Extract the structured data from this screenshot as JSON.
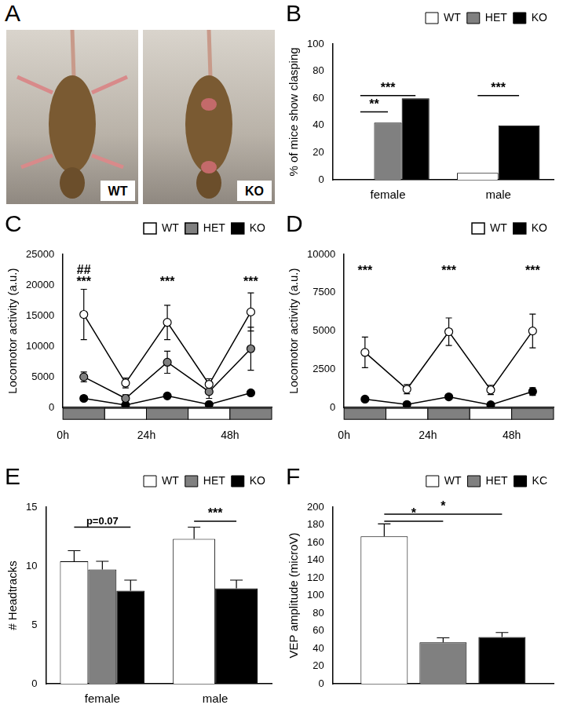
{
  "panel_a": {
    "title": "A",
    "images": [
      {
        "label": "WT"
      },
      {
        "label": "KO"
      }
    ]
  },
  "chart_data": [
    {
      "type": "bar",
      "title": "B",
      "y_label": "% of mice show clasping",
      "categories": [
        "female",
        "male"
      ],
      "series": [
        {
          "name": "WT",
          "color": "#ffffff",
          "values": [
            0,
            5
          ]
        },
        {
          "name": "HET",
          "color": "#808080",
          "values": [
            42,
            null
          ]
        },
        {
          "name": "KO",
          "color": "#000000",
          "values": [
            60,
            40
          ]
        }
      ],
      "ylim": [
        0,
        100
      ],
      "yticks": [
        0,
        20,
        40,
        60,
        80,
        100
      ],
      "grid": false,
      "legend": "top-right",
      "annotations": [
        {
          "text": "**",
          "category": "female",
          "from": "WT",
          "to": "HET",
          "y": 50
        },
        {
          "text": "***",
          "category": "female",
          "from": "WT",
          "to": "KO",
          "y": 62
        },
        {
          "text": "***",
          "category": "male",
          "from": "WT",
          "to": "KO",
          "y": 62
        }
      ]
    },
    {
      "type": "line",
      "title": "C",
      "y_label": "Locomotor activity (a.u.)",
      "x": [
        6,
        18,
        30,
        42,
        54
      ],
      "series": [
        {
          "name": "WT",
          "color": "#ffffff",
          "marker": "circle",
          "values": [
            15200,
            4000,
            13900,
            3800,
            15600
          ],
          "errors": [
            4100,
            800,
            2800,
            900,
            3100
          ]
        },
        {
          "name": "HET",
          "color": "#808080",
          "marker": "circle",
          "values": [
            5000,
            1500,
            7400,
            2600,
            9600
          ],
          "errors": [
            800,
            600,
            1800,
            1100,
            3500
          ]
        },
        {
          "name": "KO",
          "color": "#000000",
          "marker": "circle",
          "values": [
            1500,
            400,
            1900,
            500,
            2400
          ],
          "errors": [
            200,
            100,
            200,
            100,
            250
          ]
        }
      ],
      "xlim": [
        0,
        60
      ],
      "xticks": [
        {
          "value": 0,
          "label": "0h"
        },
        {
          "value": 24,
          "label": "24h"
        },
        {
          "value": 48,
          "label": "48h"
        }
      ],
      "ylim": [
        0,
        25000
      ],
      "yticks": [
        0,
        5000,
        10000,
        15000,
        20000,
        25000
      ],
      "grid": false,
      "legend": "top-right",
      "periods": [
        {
          "from": 0,
          "to": 12,
          "color": "#808080"
        },
        {
          "from": 12,
          "to": 24,
          "color": "#ffffff"
        },
        {
          "from": 24,
          "to": 36,
          "color": "#808080"
        },
        {
          "from": 36,
          "to": 48,
          "color": "#ffffff"
        },
        {
          "from": 48,
          "to": 60,
          "color": "#808080"
        }
      ],
      "annotations": [
        {
          "text": "##",
          "x": 6,
          "y": 22300
        },
        {
          "text": "***",
          "x": 6,
          "y": 20400
        },
        {
          "text": "***",
          "x": 30,
          "y": 20400
        },
        {
          "text": "***",
          "x": 54,
          "y": 20400
        }
      ]
    },
    {
      "type": "line",
      "title": "D",
      "y_label": "Locomotor activity (a.u.)",
      "x": [
        6,
        18,
        30,
        42,
        54
      ],
      "series": [
        {
          "name": "WT",
          "color": "#ffffff",
          "marker": "circle",
          "values": [
            3600,
            1200,
            4950,
            1150,
            5000
          ],
          "errors": [
            1000,
            300,
            900,
            300,
            1100
          ]
        },
        {
          "name": "KO",
          "color": "#000000",
          "marker": "circle",
          "values": [
            550,
            200,
            700,
            180,
            1050
          ],
          "errors": [
            80,
            50,
            80,
            50,
            250
          ]
        }
      ],
      "xlim": [
        0,
        60
      ],
      "xticks": [
        {
          "value": 0,
          "label": "0h"
        },
        {
          "value": 24,
          "label": "24h"
        },
        {
          "value": 48,
          "label": "48h"
        }
      ],
      "ylim": [
        0,
        10000
      ],
      "yticks": [
        0,
        2500,
        5000,
        7500,
        10000
      ],
      "grid": false,
      "legend": "top-right",
      "periods": [
        {
          "from": 0,
          "to": 12,
          "color": "#808080"
        },
        {
          "from": 12,
          "to": 24,
          "color": "#ffffff"
        },
        {
          "from": 24,
          "to": 36,
          "color": "#808080"
        },
        {
          "from": 36,
          "to": 48,
          "color": "#ffffff"
        },
        {
          "from": 48,
          "to": 60,
          "color": "#808080"
        }
      ],
      "annotations": [
        {
          "text": "***",
          "x": 6,
          "y": 8900
        },
        {
          "text": "***",
          "x": 30,
          "y": 8900
        },
        {
          "text": "***",
          "x": 54,
          "y": 8900
        }
      ]
    },
    {
      "type": "bar",
      "title": "E",
      "y_label": "# Headtracks",
      "categories": [
        "female",
        "male"
      ],
      "series": [
        {
          "name": "WT",
          "color": "#ffffff",
          "values": [
            10.4,
            12.3
          ],
          "errors": [
            0.9,
            1.0
          ]
        },
        {
          "name": "HET",
          "color": "#808080",
          "values": [
            9.7,
            null
          ],
          "errors": [
            0.7,
            null
          ]
        },
        {
          "name": "KO",
          "color": "#000000",
          "values": [
            7.9,
            8.1
          ],
          "errors": [
            0.9,
            0.7
          ]
        }
      ],
      "ylim": [
        0,
        15
      ],
      "yticks": [
        0,
        5,
        10,
        15
      ],
      "grid": false,
      "legend": "top-right",
      "annotations": [
        {
          "text": "p=0.07",
          "category": "female",
          "from": "WT",
          "to": "KO",
          "y": 13.3
        },
        {
          "text": "***",
          "category": "male",
          "from": "WT",
          "to": "KO",
          "y": 13.8
        }
      ]
    },
    {
      "type": "bar",
      "title": "F",
      "y_label": "VEP amplitude (microV)",
      "categories": [
        null
      ],
      "series": [
        {
          "name": "WT",
          "color": "#ffffff",
          "values": [
            167
          ],
          "errors": [
            14
          ]
        },
        {
          "name": "HET",
          "color": "#808080",
          "values": [
            47
          ],
          "errors": [
            5
          ]
        },
        {
          "name": "KC",
          "color": "#000000",
          "values": [
            53
          ],
          "errors": [
            5
          ]
        }
      ],
      "ylim": [
        0,
        200
      ],
      "yticks": [
        0,
        20,
        40,
        60,
        80,
        100,
        120,
        140,
        160,
        180,
        200
      ],
      "grid": false,
      "legend": "top-right",
      "annotations": [
        {
          "text": "*",
          "from": "WT",
          "to": "HET",
          "y": 184
        },
        {
          "text": "*",
          "from": "WT",
          "to": "KC",
          "y": 192
        }
      ]
    }
  ]
}
